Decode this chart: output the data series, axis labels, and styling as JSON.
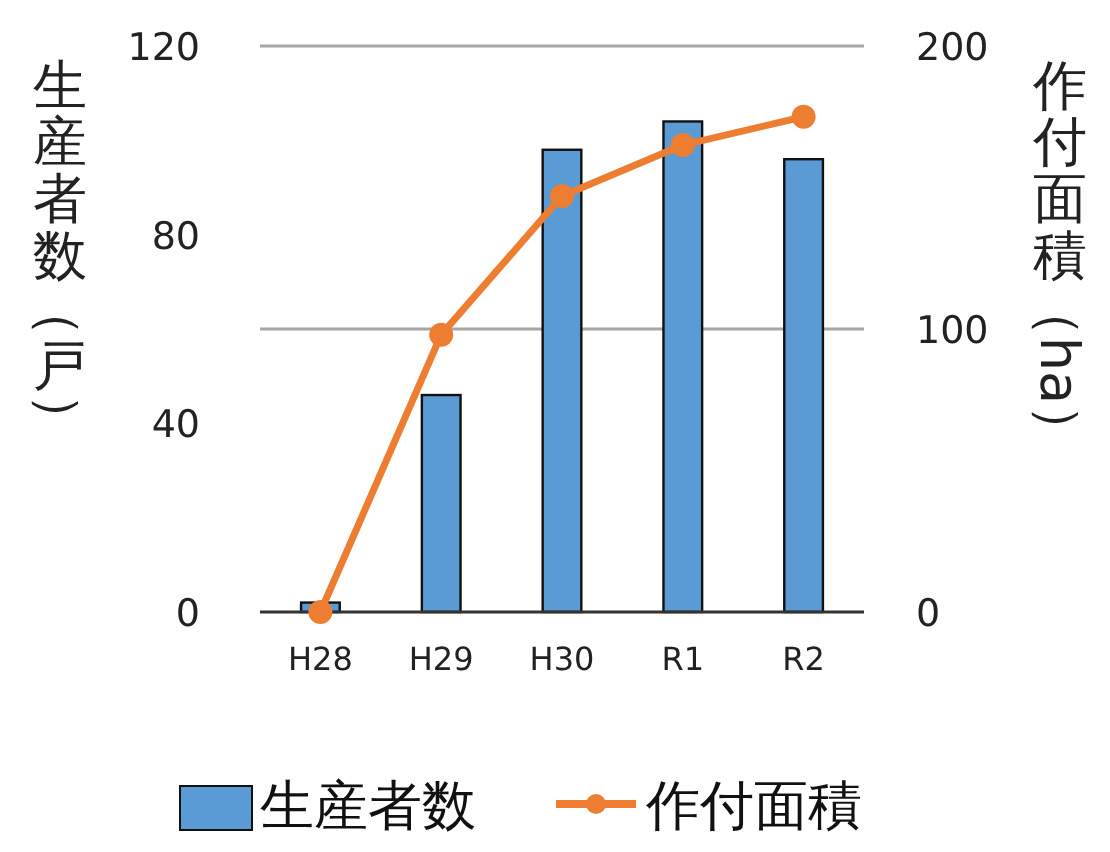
{
  "chart_data": {
    "type": "bar",
    "categories": [
      "H28",
      "H29",
      "H30",
      "R1",
      "R2"
    ],
    "series": [
      {
        "name": "生産者数",
        "color": "#5b9bd5",
        "values": [
          2,
          46,
          98,
          104,
          96
        ]
      },
      {
        "name": "作付面積",
        "type": "line",
        "axis": "y2",
        "color": "#ed7d31",
        "values": [
          0,
          98,
          147,
          165,
          175
        ]
      }
    ],
    "ylabel": "生産者数（戸）",
    "y2label": "作付面積（ha）",
    "ylim": [
      0,
      120
    ],
    "yticks": [
      0,
      40,
      80,
      120
    ],
    "y2lim": [
      0,
      200
    ],
    "y2ticks": [
      0,
      100,
      200
    ],
    "grid": "y",
    "legend": "bottom",
    "marker": "circle"
  }
}
